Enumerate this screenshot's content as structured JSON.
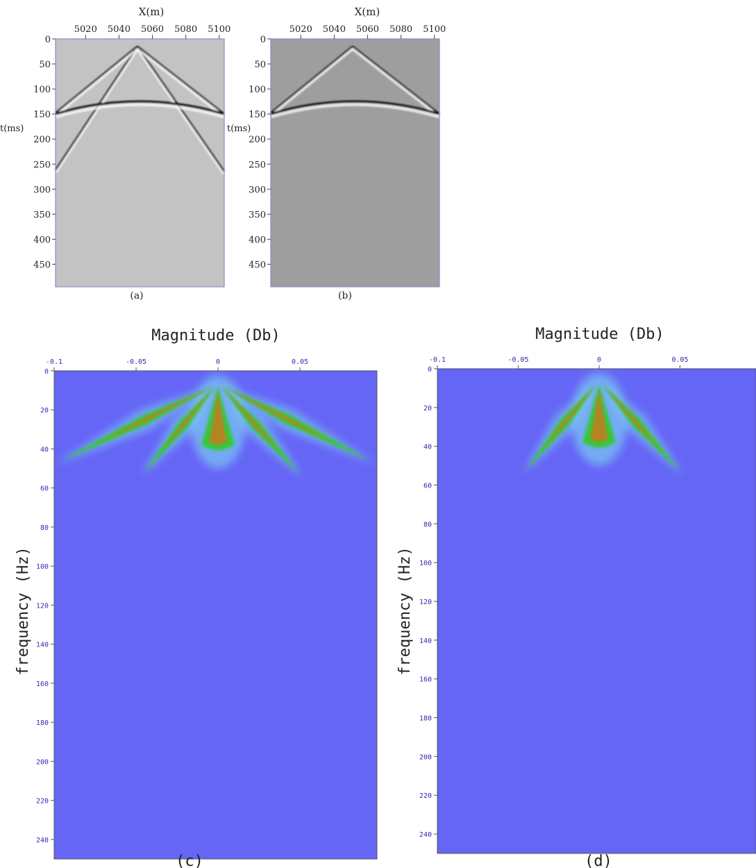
{
  "colors": {
    "seismic_a_background": "#c3c3c3",
    "seismic_b_background": "#9e9e9e",
    "panel_border": "#8a8acd",
    "spectrum_background": "#6565f6",
    "spectrum_glow": "#7fd9f2",
    "spectrum_band": "#34c83a",
    "spectrum_core": "#c87a1e",
    "spectrum_tick_text": "#2b2bb0"
  },
  "chart_data": [
    {
      "type": "heatmap",
      "panel": "(a)",
      "xlabel": "X(m)",
      "ylabel": "t(ms)",
      "xticks": [
        "5020",
        "5040",
        "5060",
        "5080",
        "5100"
      ],
      "yticks": [
        "0",
        "50",
        "100",
        "150",
        "200",
        "250",
        "300",
        "350",
        "400",
        "450"
      ],
      "xlim": [
        5002,
        5103
      ],
      "ylim": [
        0,
        495
      ],
      "events": [
        {
          "kind": "linear",
          "apex_x": 5051,
          "apex_t": 15,
          "end_x": 5002,
          "end_t": 262
        },
        {
          "kind": "linear",
          "apex_x": 5051,
          "apex_t": 15,
          "end_x": 5103,
          "end_t": 265
        },
        {
          "kind": "linear",
          "apex_x": 5051,
          "apex_t": 15,
          "end_x": 5002,
          "end_t": 148
        },
        {
          "kind": "linear",
          "apex_x": 5051,
          "apex_t": 15,
          "end_x": 5103,
          "end_t": 150
        },
        {
          "kind": "hyperbolic",
          "apex_x": 5052,
          "apex_t": 118,
          "end_t": 150
        }
      ]
    },
    {
      "type": "heatmap",
      "panel": "(b)",
      "xlabel": "X(m)",
      "ylabel": "t(ms)",
      "xticks": [
        "5020",
        "5040",
        "5060",
        "5080",
        "5100"
      ],
      "yticks": [
        "0",
        "50",
        "100",
        "150",
        "200",
        "250",
        "300",
        "350",
        "400",
        "450"
      ],
      "xlim": [
        5002,
        5103
      ],
      "ylim": [
        0,
        495
      ],
      "events": [
        {
          "kind": "linear",
          "apex_x": 5051,
          "apex_t": 15,
          "end_x": 5002,
          "end_t": 148
        },
        {
          "kind": "linear",
          "apex_x": 5051,
          "apex_t": 15,
          "end_x": 5103,
          "end_t": 150
        },
        {
          "kind": "hyperbolic",
          "apex_x": 5052,
          "apex_t": 118,
          "end_t": 150
        }
      ]
    },
    {
      "type": "heatmap",
      "panel": "(c)",
      "title": "Magnitude (Db)",
      "ylabel": "frequency (Hz)",
      "xticks": [
        "-0.1",
        "-0.05",
        "0",
        "0.05"
      ],
      "yticks": [
        "0",
        "20",
        "40",
        "60",
        "80",
        "100",
        "120",
        "140",
        "160",
        "180",
        "200",
        "220",
        "240"
      ],
      "xlim": [
        -0.1,
        0.097
      ],
      "ylim": [
        0,
        250
      ],
      "energy_fans": [
        {
          "from_k": -0.003,
          "from_f": 8,
          "to_k": -0.1,
          "to_f": 48
        },
        {
          "from_k": -0.002,
          "from_f": 8,
          "to_k": -0.047,
          "to_f": 54
        },
        {
          "from_k": 0.002,
          "from_f": 8,
          "to_k": 0.052,
          "to_f": 55
        },
        {
          "from_k": 0.003,
          "from_f": 8,
          "to_k": 0.097,
          "to_f": 48
        }
      ],
      "central_core": {
        "k": 0,
        "f_range": [
          8,
          40
        ]
      }
    },
    {
      "type": "heatmap",
      "panel": "(d)",
      "title": "Magnitude (Db)",
      "ylabel": "frequency (Hz)",
      "xticks": [
        "-0.1",
        "-0.05",
        "0",
        "0.05"
      ],
      "yticks": [
        "0",
        "20",
        "40",
        "60",
        "80",
        "100",
        "120",
        "140",
        "160",
        "180",
        "200",
        "220",
        "240"
      ],
      "xlim": [
        -0.1,
        0.097
      ],
      "ylim": [
        0,
        250
      ],
      "energy_fans": [
        {
          "from_k": -0.002,
          "from_f": 8,
          "to_k": -0.047,
          "to_f": 54
        },
        {
          "from_k": 0.002,
          "from_f": 8,
          "to_k": 0.052,
          "to_f": 55
        }
      ],
      "central_core": {
        "k": 0,
        "f_range": [
          8,
          40
        ]
      }
    }
  ]
}
